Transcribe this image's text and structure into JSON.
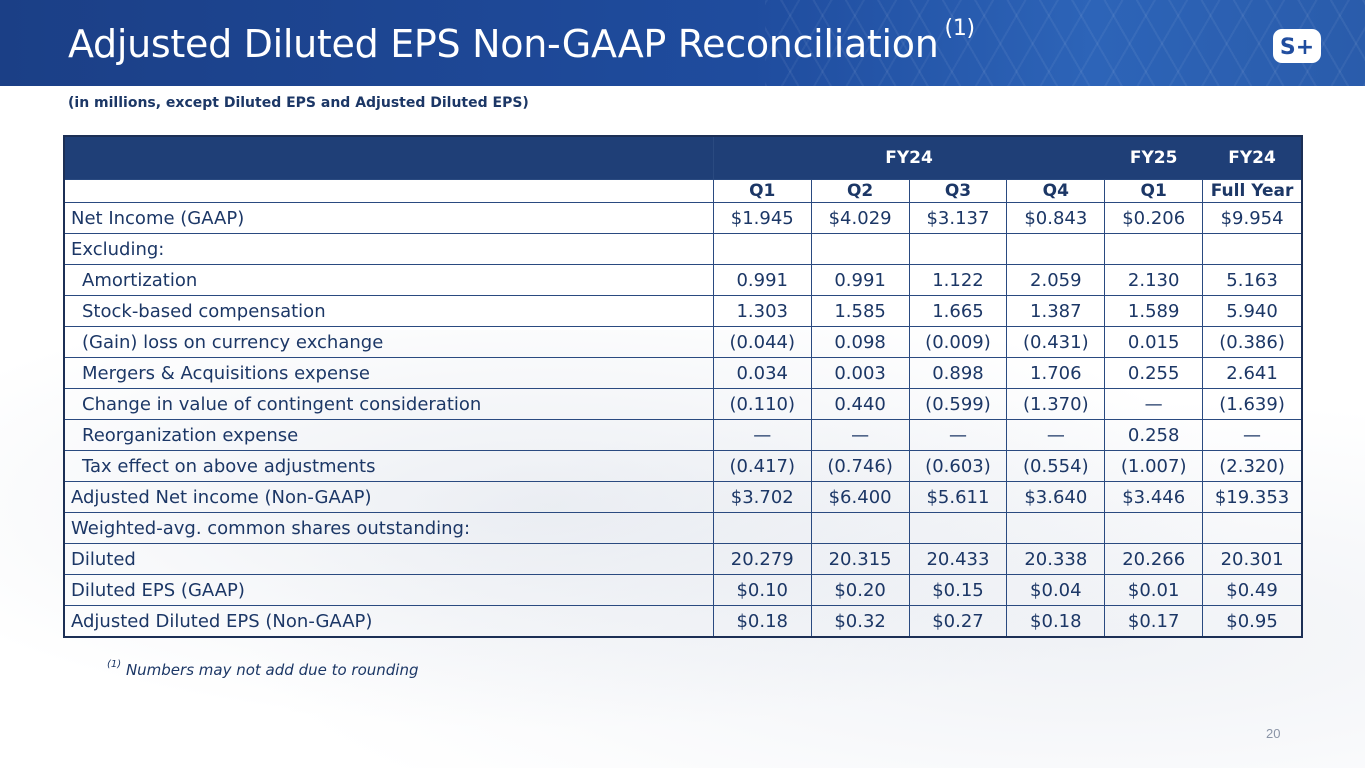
{
  "header": {
    "title": "Adjusted Diluted EPS Non-GAAP Reconciliation",
    "title_sup": "(1)",
    "logo_text": "S+"
  },
  "subtitle": "(in millions, except Diluted EPS and Adjusted Diluted EPS)",
  "table": {
    "group_headers": [
      "FY24",
      "FY25",
      "FY24"
    ],
    "column_headers": [
      "Q1",
      "Q2",
      "Q3",
      "Q4",
      "Q1",
      "Full Year"
    ],
    "rows": [
      {
        "label": "Net Income (GAAP)",
        "values": [
          "$1.945",
          "$4.029",
          "$3.137",
          "$0.843",
          "$0.206",
          "$9.954"
        ]
      },
      {
        "label": "Excluding:",
        "values": [
          "",
          "",
          "",
          "",
          "",
          ""
        ]
      },
      {
        "label": "Amortization",
        "values": [
          "0.991",
          "0.991",
          "1.122",
          "2.059",
          "2.130",
          "5.163"
        ]
      },
      {
        "label": "Stock-based compensation",
        "values": [
          "1.303",
          "1.585",
          "1.665",
          "1.387",
          "1.589",
          "5.940"
        ]
      },
      {
        "label": "(Gain) loss on currency exchange",
        "values": [
          "(0.044)",
          "0.098",
          "(0.009)",
          "(0.431)",
          "0.015",
          "(0.386)"
        ]
      },
      {
        "label": "Mergers & Acquisitions expense",
        "values": [
          "0.034",
          "0.003",
          "0.898",
          "1.706",
          "0.255",
          "2.641"
        ]
      },
      {
        "label": "Change in value of contingent consideration",
        "values": [
          "(0.110)",
          "0.440",
          "(0.599)",
          "(1.370)",
          "—",
          "(1.639)"
        ]
      },
      {
        "label": "Reorganization expense",
        "values": [
          "—",
          "—",
          "—",
          "—",
          "0.258",
          "—"
        ]
      },
      {
        "label": "Tax effect on above adjustments",
        "values": [
          "(0.417)",
          "(0.746)",
          "(0.603)",
          "(0.554)",
          "(1.007)",
          "(2.320)"
        ]
      },
      {
        "label": "Adjusted Net income (Non-GAAP)",
        "values": [
          "$3.702",
          "$6.400",
          "$5.611",
          "$3.640",
          "$3.446",
          "$19.353"
        ]
      },
      {
        "label": "Weighted-avg. common shares outstanding:",
        "values": [
          "",
          "",
          "",
          "",
          "",
          ""
        ]
      },
      {
        "label": "Diluted",
        "values": [
          "20.279",
          "20.315",
          "20.433",
          "20.338",
          "20.266",
          "20.301"
        ]
      },
      {
        "label": "Diluted EPS (GAAP)",
        "values": [
          "$0.10",
          "$0.20",
          "$0.15",
          "$0.04",
          "$0.01",
          "$0.49"
        ]
      },
      {
        "label": "Adjusted Diluted EPS (Non-GAAP)",
        "values": [
          "$0.18",
          "$0.32",
          "$0.27",
          "$0.18",
          "$0.17",
          "$0.95"
        ]
      }
    ]
  },
  "footnote": {
    "marker": "(1)",
    "text": " Numbers may not add due to rounding"
  },
  "page_number": "20"
}
